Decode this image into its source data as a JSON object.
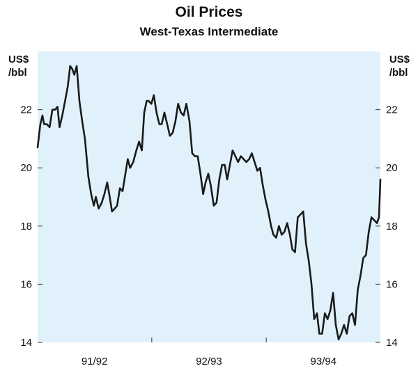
{
  "chart_data": {
    "type": "line",
    "title": "Oil Prices",
    "subtitle": "West-Texas Intermediate",
    "ylabel_left": [
      "US$",
      "/bbl"
    ],
    "ylabel_right": [
      "US$",
      "/bbl"
    ],
    "ylim": [
      14,
      24
    ],
    "yticks": [
      14,
      16,
      18,
      20,
      22
    ],
    "ytick_labels": [
      "14",
      "16",
      "18",
      "20",
      "22"
    ],
    "xlim": [
      0,
      1
    ],
    "x_categories": [
      "91/92",
      "92/93",
      "93/94"
    ],
    "x_category_centers": [
      0.166,
      0.5,
      0.834
    ],
    "x_boundaries": [
      0.333,
      0.667
    ],
    "plot_background": "#e0f1fb",
    "line_color": "#1a1a1a",
    "series": [
      {
        "points": [
          [
            0.0,
            20.7
          ],
          [
            0.008,
            21.5
          ],
          [
            0.014,
            21.8
          ],
          [
            0.019,
            21.5
          ],
          [
            0.027,
            21.5
          ],
          [
            0.035,
            21.4
          ],
          [
            0.043,
            22.0
          ],
          [
            0.051,
            22.0
          ],
          [
            0.058,
            22.1
          ],
          [
            0.064,
            21.4
          ],
          [
            0.072,
            21.8
          ],
          [
            0.08,
            22.3
          ],
          [
            0.088,
            22.8
          ],
          [
            0.095,
            23.5
          ],
          [
            0.101,
            23.4
          ],
          [
            0.107,
            23.2
          ],
          [
            0.114,
            23.5
          ],
          [
            0.122,
            22.3
          ],
          [
            0.13,
            21.6
          ],
          [
            0.138,
            21.0
          ],
          [
            0.148,
            19.7
          ],
          [
            0.156,
            19.1
          ],
          [
            0.164,
            18.7
          ],
          [
            0.17,
            19.0
          ],
          [
            0.178,
            18.6
          ],
          [
            0.187,
            18.8
          ],
          [
            0.195,
            19.1
          ],
          [
            0.203,
            19.5
          ],
          [
            0.209,
            19.1
          ],
          [
            0.217,
            18.5
          ],
          [
            0.225,
            18.6
          ],
          [
            0.232,
            18.7
          ],
          [
            0.24,
            19.3
          ],
          [
            0.248,
            19.2
          ],
          [
            0.256,
            19.8
          ],
          [
            0.263,
            20.3
          ],
          [
            0.27,
            20.0
          ],
          [
            0.279,
            20.2
          ],
          [
            0.288,
            20.6
          ],
          [
            0.296,
            20.9
          ],
          [
            0.304,
            20.6
          ],
          [
            0.311,
            21.9
          ],
          [
            0.318,
            22.3
          ],
          [
            0.324,
            22.3
          ],
          [
            0.332,
            22.2
          ],
          [
            0.339,
            22.5
          ],
          [
            0.347,
            21.9
          ],
          [
            0.355,
            21.5
          ],
          [
            0.362,
            21.5
          ],
          [
            0.37,
            21.9
          ],
          [
            0.378,
            21.5
          ],
          [
            0.386,
            21.1
          ],
          [
            0.394,
            21.2
          ],
          [
            0.402,
            21.6
          ],
          [
            0.41,
            22.2
          ],
          [
            0.418,
            21.9
          ],
          [
            0.426,
            21.8
          ],
          [
            0.434,
            22.2
          ],
          [
            0.443,
            21.6
          ],
          [
            0.451,
            20.5
          ],
          [
            0.459,
            20.4
          ],
          [
            0.467,
            20.4
          ],
          [
            0.475,
            19.8
          ],
          [
            0.483,
            19.1
          ],
          [
            0.49,
            19.5
          ],
          [
            0.498,
            19.8
          ],
          [
            0.505,
            19.4
          ],
          [
            0.514,
            18.7
          ],
          [
            0.522,
            18.8
          ],
          [
            0.53,
            19.6
          ],
          [
            0.538,
            20.1
          ],
          [
            0.546,
            20.1
          ],
          [
            0.553,
            19.6
          ],
          [
            0.561,
            20.1
          ],
          [
            0.569,
            20.6
          ],
          [
            0.577,
            20.4
          ],
          [
            0.585,
            20.2
          ],
          [
            0.593,
            20.4
          ],
          [
            0.601,
            20.3
          ],
          [
            0.609,
            20.2
          ],
          [
            0.617,
            20.3
          ],
          [
            0.625,
            20.5
          ],
          [
            0.633,
            20.2
          ],
          [
            0.641,
            19.9
          ],
          [
            0.649,
            20.0
          ],
          [
            0.657,
            19.4
          ],
          [
            0.665,
            18.9
          ],
          [
            0.673,
            18.5
          ],
          [
            0.681,
            18.0
          ],
          [
            0.688,
            17.7
          ],
          [
            0.696,
            17.6
          ],
          [
            0.704,
            18.0
          ],
          [
            0.712,
            17.7
          ],
          [
            0.72,
            17.8
          ],
          [
            0.728,
            18.1
          ],
          [
            0.736,
            17.7
          ],
          [
            0.743,
            17.2
          ],
          [
            0.751,
            17.1
          ],
          [
            0.759,
            18.3
          ],
          [
            0.767,
            18.4
          ],
          [
            0.775,
            18.5
          ],
          [
            0.783,
            17.4
          ],
          [
            0.791,
            16.8
          ],
          [
            0.799,
            16.0
          ],
          [
            0.807,
            14.8
          ],
          [
            0.815,
            15.0
          ],
          [
            0.822,
            14.3
          ],
          [
            0.83,
            14.3
          ],
          [
            0.838,
            15.0
          ],
          [
            0.846,
            14.8
          ],
          [
            0.854,
            15.1
          ],
          [
            0.862,
            15.7
          ],
          [
            0.87,
            14.6
          ],
          [
            0.878,
            14.1
          ],
          [
            0.886,
            14.3
          ],
          [
            0.894,
            14.6
          ],
          [
            0.902,
            14.3
          ],
          [
            0.91,
            14.9
          ],
          [
            0.918,
            15.0
          ],
          [
            0.926,
            14.6
          ],
          [
            0.934,
            15.8
          ],
          [
            0.942,
            16.3
          ],
          [
            0.95,
            16.9
          ],
          [
            0.958,
            17.0
          ],
          [
            0.966,
            17.8
          ],
          [
            0.974,
            18.3
          ],
          [
            0.982,
            18.2
          ],
          [
            0.99,
            18.1
          ],
          [
            0.996,
            18.3
          ],
          [
            1.0,
            19.6
          ]
        ]
      }
    ]
  }
}
